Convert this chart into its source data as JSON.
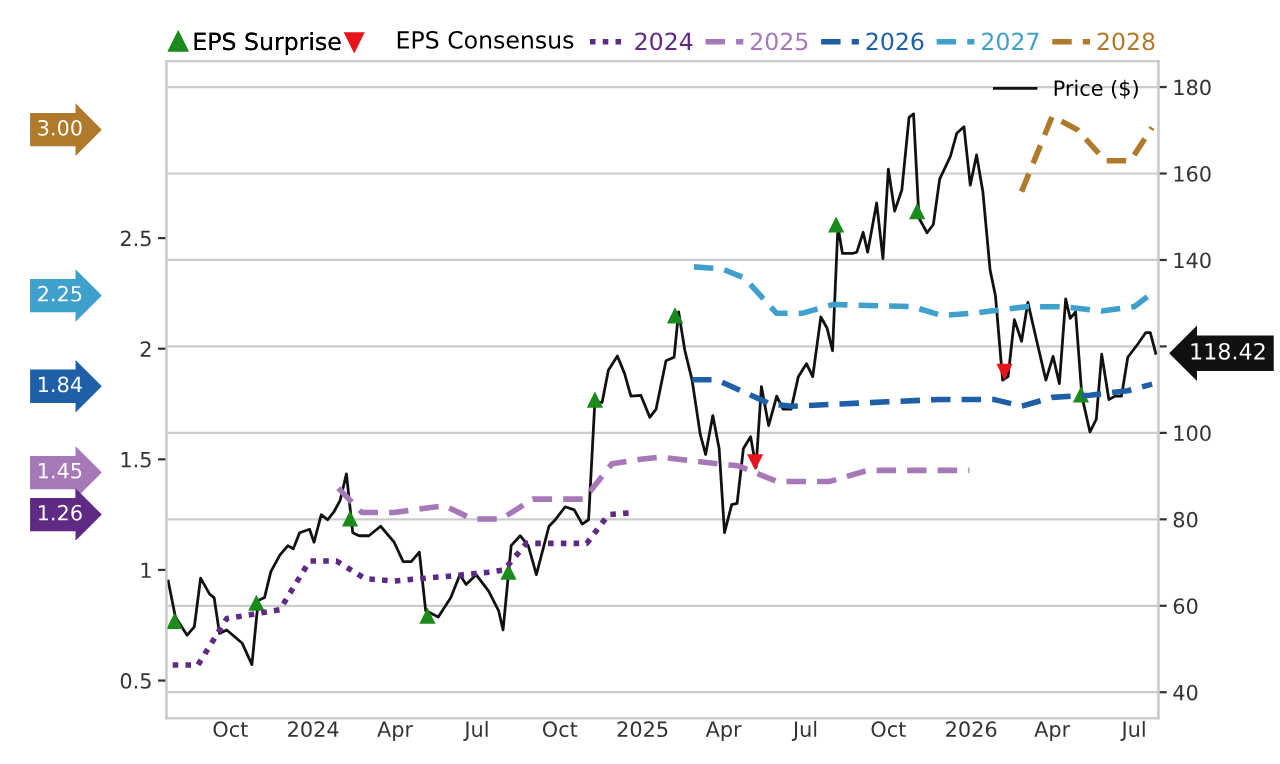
{
  "chart_data": {
    "type": "line",
    "xlim": [
      "2023-07-22",
      "2026-07-28"
    ],
    "xticks": [
      {
        "value": "2023-10-01",
        "label": "Oct"
      },
      {
        "value": "2024-01-01",
        "label": "2024"
      },
      {
        "value": "2024-04-01",
        "label": "Apr"
      },
      {
        "value": "2024-07-01",
        "label": "Jul"
      },
      {
        "value": "2024-10-01",
        "label": "Oct"
      },
      {
        "value": "2025-01-01",
        "label": "2025"
      },
      {
        "value": "2025-04-01",
        "label": "Apr"
      },
      {
        "value": "2025-07-01",
        "label": "Jul"
      },
      {
        "value": "2025-10-01",
        "label": "Oct"
      },
      {
        "value": "2026-01-01",
        "label": "2026"
      },
      {
        "value": "2026-04-01",
        "label": "Apr"
      },
      {
        "value": "2026-07-01",
        "label": "Jul"
      }
    ],
    "ylim": [
      0.33,
      3.3
    ],
    "yticks": [
      0.5,
      1,
      1.5,
      2,
      2.5
    ],
    "y2lim": [
      34,
      186
    ],
    "y2ticks": [
      40,
      60,
      80,
      100,
      {
        "value": 120,
        "label": null
      },
      140,
      160,
      180
    ],
    "grid": true,
    "legend": "top",
    "legend_title": "EPS Consensus",
    "y3lim": [
      0.33,
      3.3
    ],
    "y3ticks": [
      {
        "value": 3.0,
        "label": "3.00"
      },
      {
        "value": 2.25,
        "label": "2.25"
      },
      {
        "value": 1.84,
        "label": "1.84"
      },
      {
        "value": 1.45,
        "label": "1.45"
      },
      {
        "value": 1.26,
        "label": "1.26"
      }
    ],
    "series": [
      {
        "name": "2024",
        "axis": "y",
        "color": "#5e2a84",
        "line_style": "dotted",
        "x": [
          "2023-07-29",
          "2023-08-26",
          "2023-09-27",
          "2023-11-25",
          "2023-12-28",
          "2024-01-27",
          "2024-02-28",
          "2024-03-31",
          "2024-05-26",
          "2024-07-14",
          "2024-07-31",
          "2024-08-25",
          "2024-10-31",
          "2024-11-24",
          "2024-12-23"
        ],
        "values": [
          0.57,
          0.57,
          0.78,
          0.82,
          1.04,
          1.04,
          0.96,
          0.95,
          0.97,
          0.99,
          1.0,
          1.12,
          1.12,
          1.25,
          1.26
        ]
      },
      {
        "name": "2025",
        "axis": "y",
        "color": "#a678b8",
        "line_style": "dashed",
        "x": [
          "2024-01-29",
          "2024-02-24",
          "2024-03-31",
          "2024-05-26",
          "2024-06-26",
          "2024-07-28",
          "2024-09-01",
          "2024-10-28",
          "2024-11-28",
          "2024-12-30",
          "2025-01-20",
          "2025-03-03",
          "2025-04-18",
          "2025-05-30",
          "2025-07-28",
          "2025-09-08",
          "2025-10-21",
          "2025-12-30"
        ],
        "values": [
          1.37,
          1.26,
          1.26,
          1.29,
          1.23,
          1.23,
          1.32,
          1.32,
          1.48,
          1.5,
          1.51,
          1.49,
          1.47,
          1.4,
          1.4,
          1.45,
          1.45,
          1.45
        ]
      },
      {
        "name": "2026",
        "axis": "y",
        "color": "#1f5fa8",
        "line_style": "dashed",
        "x": [
          "2025-02-25",
          "2025-03-24",
          "2025-05-23",
          "2025-06-16",
          "2025-09-30",
          "2025-11-25",
          "2026-01-27",
          "2026-02-26",
          "2026-04-01",
          "2026-05-13",
          "2026-06-24",
          "2026-07-21"
        ],
        "values": [
          1.86,
          1.86,
          1.75,
          1.74,
          1.76,
          1.77,
          1.77,
          1.74,
          1.78,
          1.79,
          1.81,
          1.84
        ]
      },
      {
        "name": "2027",
        "axis": "y",
        "color": "#3fa0cc",
        "line_style": "dashed",
        "x": [
          "2025-02-27",
          "2025-03-31",
          "2025-04-24",
          "2025-05-30",
          "2025-06-27",
          "2025-08-01",
          "2025-10-28",
          "2025-11-29",
          "2026-01-02",
          "2026-03-03",
          "2026-04-14",
          "2026-05-26",
          "2026-07-01",
          "2026-07-21"
        ],
        "values": [
          2.37,
          2.36,
          2.32,
          2.16,
          2.16,
          2.2,
          2.19,
          2.15,
          2.16,
          2.19,
          2.19,
          2.17,
          2.19,
          2.25
        ]
      },
      {
        "name": "2028",
        "axis": "y",
        "color": "#b07a2c",
        "line_style": "dashed",
        "x": [
          "2026-02-26",
          "2026-04-01",
          "2026-04-29",
          "2026-05-30",
          "2026-06-27",
          "2026-07-21"
        ],
        "values": [
          2.71,
          3.05,
          2.99,
          2.85,
          2.85,
          3.0
        ]
      },
      {
        "name": "Price ($)",
        "axis": "y2",
        "color": "#111111",
        "line_style": "solid",
        "x": [
          "2023-07-24",
          "2023-08-01",
          "2023-08-14",
          "2023-08-22",
          "2023-08-29",
          "2023-09-08",
          "2023-09-13",
          "2023-09-19",
          "2023-09-27",
          "2023-10-14",
          "2023-10-25",
          "2023-11-01",
          "2023-11-08",
          "2023-11-15",
          "2023-11-25",
          "2023-12-04",
          "2023-12-10",
          "2023-12-17",
          "2023-12-28",
          "2024-01-02",
          "2024-01-10",
          "2024-01-17",
          "2024-01-24",
          "2024-01-31",
          "2024-02-07",
          "2024-02-14",
          "2024-02-21",
          "2024-03-03",
          "2024-03-16",
          "2024-03-31",
          "2024-04-10",
          "2024-04-19",
          "2024-04-28",
          "2024-05-05",
          "2024-05-19",
          "2024-06-02",
          "2024-06-12",
          "2024-06-19",
          "2024-06-30",
          "2024-07-14",
          "2024-07-25",
          "2024-07-30",
          "2024-08-08",
          "2024-08-18",
          "2024-08-27",
          "2024-09-05",
          "2024-09-19",
          "2024-09-26",
          "2024-10-07",
          "2024-10-17",
          "2024-10-26",
          "2024-11-02",
          "2024-11-09",
          "2024-11-17",
          "2024-11-24",
          "2024-12-04",
          "2024-12-12",
          "2024-12-19",
          "2024-12-30",
          "2025-01-09",
          "2025-01-16",
          "2025-01-27",
          "2025-02-05",
          "2025-02-10",
          "2025-02-17",
          "2025-02-25",
          "2025-03-06",
          "2025-03-12",
          "2025-03-20",
          "2025-03-27",
          "2025-04-02",
          "2025-04-10",
          "2025-04-16",
          "2025-04-23",
          "2025-05-01",
          "2025-05-07",
          "2025-05-13",
          "2025-05-21",
          "2025-05-30",
          "2025-06-06",
          "2025-06-15",
          "2025-06-23",
          "2025-07-02",
          "2025-07-09",
          "2025-07-18",
          "2025-07-25",
          "2025-07-31",
          "2025-08-06",
          "2025-08-11",
          "2025-08-22",
          "2025-08-27",
          "2025-09-03",
          "2025-09-08",
          "2025-09-18",
          "2025-09-25",
          "2025-10-01",
          "2025-10-08",
          "2025-10-16",
          "2025-10-24",
          "2025-10-29",
          "2025-11-04",
          "2025-11-13",
          "2025-11-20",
          "2025-11-27",
          "2025-12-09",
          "2025-12-16",
          "2025-12-24",
          "2025-12-31",
          "2026-01-07",
          "2026-01-14",
          "2026-01-22",
          "2026-01-28",
          "2026-02-05",
          "2026-02-11",
          "2026-02-18",
          "2026-02-26",
          "2026-03-05",
          "2026-03-14",
          "2026-03-25",
          "2026-04-02",
          "2026-04-09",
          "2026-04-16",
          "2026-04-21",
          "2026-04-27",
          "2026-05-04",
          "2026-05-13",
          "2026-05-20",
          "2026-05-26",
          "2026-06-03",
          "2026-06-10",
          "2026-06-17",
          "2026-06-24",
          "2026-07-05",
          "2026-07-14",
          "2026-07-19",
          "2026-07-25"
        ],
        "values": [
          65.7,
          57.4,
          53.2,
          55.1,
          66.4,
          62.7,
          61.9,
          53.6,
          54.4,
          51.4,
          46.4,
          61.2,
          61.9,
          67.9,
          71.7,
          73.9,
          73.2,
          76.9,
          77.7,
          74.7,
          81.1,
          79.9,
          81.7,
          84.4,
          90.5,
          76.9,
          76.2,
          76.2,
          78.4,
          74.7,
          70.2,
          70.2,
          72.4,
          58.9,
          57.4,
          61.9,
          67.2,
          64.9,
          67.2,
          63.4,
          58.9,
          54.4,
          73.9,
          76.2,
          73.9,
          67.2,
          78.4,
          79.9,
          82.9,
          82.2,
          78.9,
          79.9,
          107.3,
          107.0,
          114.5,
          117.8,
          113.7,
          108.5,
          108.7,
          103.6,
          105.5,
          116.7,
          117.5,
          128.0,
          119.0,
          112.2,
          99.7,
          95.0,
          104.0,
          96.4,
          76.9,
          83.4,
          83.7,
          96.4,
          99.1,
          92.0,
          110.7,
          101.7,
          108.5,
          105.5,
          105.5,
          113.0,
          116.0,
          113.0,
          126.8,
          124.2,
          119.0,
          147.8,
          141.5,
          141.5,
          141.8,
          146.4,
          141.8,
          153.2,
          140.3,
          161.0,
          151.3,
          156.2,
          173.0,
          173.8,
          149.7,
          146.3,
          148.2,
          158.7,
          164.0,
          169.3,
          170.8,
          157.3,
          164.3,
          155.8,
          137.7,
          131.7,
          112.2,
          113.0,
          126.2,
          121.2,
          130.2,
          122.0,
          112.2,
          117.7,
          111.4,
          131.0,
          126.5,
          128.0,
          108.5,
          100.2,
          103.2,
          118.2,
          107.7,
          108.5,
          108.5,
          117.5,
          120.5,
          123.2,
          123.2,
          118.42
        ],
        "value_labels": [
          null,
          null,
          null,
          null,
          null,
          null,
          null,
          null,
          null,
          null,
          null,
          null,
          null,
          null,
          null,
          null,
          null,
          null,
          null,
          null,
          null,
          null,
          null,
          null,
          null,
          null,
          null,
          null,
          null,
          null,
          null,
          null,
          null,
          null,
          null,
          null,
          null,
          null,
          null,
          null,
          null,
          null,
          null,
          null,
          null,
          null,
          null,
          null,
          null,
          null,
          null,
          null,
          null,
          null,
          null,
          null,
          null,
          null,
          null,
          null,
          null,
          null,
          null,
          null,
          null,
          null,
          null,
          null,
          null,
          null,
          null,
          null,
          null,
          null,
          null,
          null,
          null,
          null,
          null,
          null,
          null,
          null,
          null,
          null,
          null,
          null,
          null,
          null,
          null,
          null,
          null,
          null,
          null,
          null,
          null,
          null,
          null,
          null,
          null,
          null,
          null,
          null,
          null,
          null,
          null,
          null,
          null,
          null,
          null,
          null,
          null,
          null,
          null,
          null,
          null,
          null,
          null,
          null,
          null,
          null,
          null,
          null,
          null,
          null,
          null,
          null,
          null,
          null,
          null,
          null,
          null,
          null,
          null,
          null,
          null,
          "118.42"
        ]
      },
      {
        "name": "EPS Surprise",
        "type": "scatter",
        "axis": "y2",
        "color": "#1a8a1a",
        "marker": "triangle",
        "x": [
          "2023-07-31",
          "2023-10-30",
          "2024-02-11",
          "2024-05-07",
          "2024-08-05",
          "2024-11-09",
          "2025-02-06",
          "2025-08-04",
          "2025-11-02",
          "2026-05-03"
        ],
        "values": [
          56.5,
          60.7,
          80.2,
          57.7,
          67.9,
          107.7,
          127.2,
          148.2,
          151.3,
          108.9
        ]
      },
      {
        "type": "scatter",
        "axis": "y2",
        "color": "#e8141b",
        "marker": "triangle-down",
        "x": [
          "2025-05-06",
          "2026-02-07"
        ],
        "values": [
          93.2,
          114.1
        ]
      }
    ]
  }
}
